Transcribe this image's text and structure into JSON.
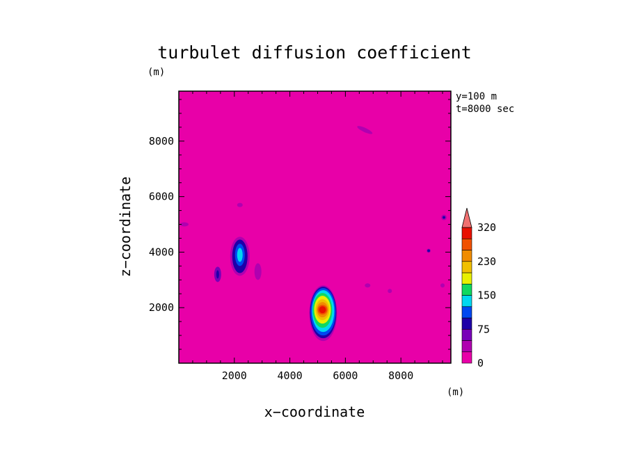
{
  "chart_data": {
    "type": "heatmap",
    "title": "turbulet diffusion coefficient",
    "xlabel": "x−coordinate",
    "ylabel": "z−coordinate",
    "x_unit": "(m)",
    "y_unit": "(m)",
    "xlim": [
      0,
      9800
    ],
    "ylim": [
      0,
      9800
    ],
    "x_ticks": [
      2000,
      4000,
      6000,
      8000
    ],
    "y_ticks": [
      2000,
      4000,
      6000,
      8000
    ],
    "x_tick_labels": [
      "2000",
      "4000",
      "6000",
      "8000"
    ],
    "y_tick_labels": [
      "2000",
      "4000",
      "6000",
      "8000"
    ],
    "annotations": [
      "y=100 m",
      "t=8000 sec"
    ],
    "colorbar": {
      "levels": [
        0,
        25,
        50,
        75,
        100,
        125,
        150,
        175,
        200,
        230,
        260,
        290,
        320
      ],
      "tick_values": [
        0,
        75,
        150,
        230,
        320
      ],
      "tick_labels": [
        "0",
        "75",
        "150",
        "230",
        "320"
      ],
      "colors": [
        "#e800a8",
        "#b000b0",
        "#7800b8",
        "#1e00a8",
        "#0048f0",
        "#00d8f0",
        "#10d860",
        "#e8f000",
        "#f0c000",
        "#f08c00",
        "#f05000",
        "#e81000"
      ],
      "overflow_color": "#f07070",
      "extend": "max"
    },
    "background_value": 0,
    "features": [
      {
        "x": 5200,
        "z": 1800,
        "peak": 320
      },
      {
        "x": 2200,
        "z": 3850,
        "peak": 160
      },
      {
        "x": 1400,
        "z": 3200,
        "peak": 75
      },
      {
        "x": 2850,
        "z": 3300,
        "peak": 50
      },
      {
        "x": 9550,
        "z": 5250,
        "peak": 75
      },
      {
        "x": 9000,
        "z": 4050,
        "peak": 75
      },
      {
        "x": 6700,
        "z": 8400,
        "peak": 50
      },
      {
        "x": 6800,
        "z": 2800,
        "peak": 50
      },
      {
        "x": 9500,
        "z": 2800,
        "peak": 50
      },
      {
        "x": 7600,
        "z": 2600,
        "peak": 50
      },
      {
        "x": 2200,
        "z": 5700,
        "peak": 50
      },
      {
        "x": 200,
        "z": 5000,
        "peak": 50
      }
    ]
  }
}
